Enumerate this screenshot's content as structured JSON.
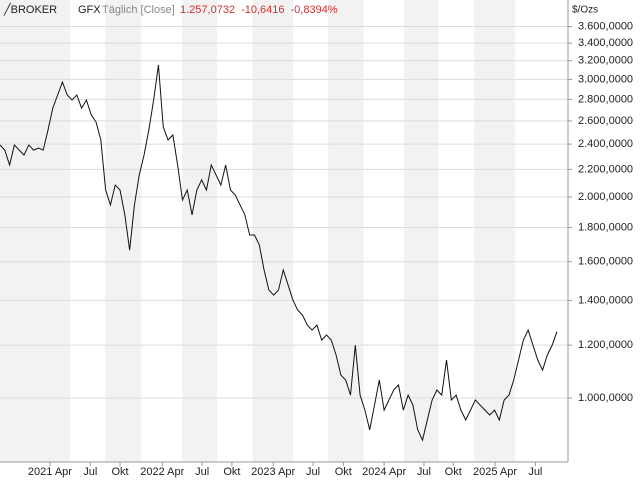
{
  "chart_data": {
    "type": "line",
    "brand": "╱BROKER",
    "title": "GFX",
    "subtitle": "Täglich [Close]",
    "annotations": [
      "1.257,0732",
      "-10,6416",
      "-0,8394%"
    ],
    "annotation_color": "#d03030",
    "ylabel": "$/Ozs",
    "log_scale": true,
    "grid": true,
    "series": [
      {
        "name": "GFX",
        "color": "#111111",
        "values": [
          2393,
          2351,
          2233,
          2393,
          2351,
          2312,
          2393,
          2351,
          2368,
          2351,
          2520,
          2718,
          2843,
          2973,
          2843,
          2794,
          2843,
          2718,
          2794,
          2654,
          2590,
          2435,
          2049,
          1946,
          2084,
          2049,
          1880,
          1665,
          1946,
          2158,
          2312,
          2520,
          2794,
          3153,
          2546,
          2435,
          2477,
          2233,
          1979,
          2049,
          1880,
          2049,
          2121,
          2049,
          2233,
          2158,
          2084,
          2233,
          2049,
          2014,
          1946,
          1880,
          1754,
          1754,
          1696,
          1555,
          1451,
          1426,
          1451,
          1555,
          1477,
          1402,
          1354,
          1331,
          1286,
          1264,
          1286,
          1221,
          1243,
          1221,
          1160,
          1082,
          1064,
          1010,
          1200,
          1010,
          959,
          896,
          976,
          1064,
          959,
          993,
          1028,
          1046,
          959,
          1010,
          976,
          896,
          865,
          927,
          993,
          1028,
          1010,
          1140,
          993,
          1010,
          959,
          927,
          959,
          993,
          976,
          959,
          943,
          959,
          927,
          993,
          1010,
          1064,
          1140,
          1221,
          1264,
          1200,
          1140,
          1101,
          1160,
          1200,
          1257
        ]
      }
    ],
    "xlim": [
      0,
      118.3
    ],
    "xticks": [
      {
        "value": 10.4,
        "label": "2021 Apr"
      },
      {
        "value": 18.8,
        "label": "Jul"
      },
      {
        "value": 25,
        "label": "Okt"
      },
      {
        "value": 33.8,
        "label": "2022 Apr"
      },
      {
        "value": 42.1,
        "label": "Jul"
      },
      {
        "value": 48.3,
        "label": "Okt"
      },
      {
        "value": 56.9,
        "label": "2023 Apr"
      },
      {
        "value": 65.2,
        "label": "Jul"
      },
      {
        "value": 71.5,
        "label": "Okt"
      },
      {
        "value": 80,
        "label": "2024 Apr"
      },
      {
        "value": 88.3,
        "label": "Jul"
      },
      {
        "value": 94.4,
        "label": "Okt"
      },
      {
        "value": 103.1,
        "label": "2025 Apr"
      },
      {
        "value": 111.5,
        "label": "Jul"
      }
    ],
    "ylim": [
      802,
      3945
    ],
    "yticks": [
      {
        "value": 1000,
        "label": "1.000,0000"
      },
      {
        "value": 1200,
        "label": "1.200,0000"
      },
      {
        "value": 1400,
        "label": "1.400,0000"
      },
      {
        "value": 1600,
        "label": "1.600,0000"
      },
      {
        "value": 1800,
        "label": "1.800,0000"
      },
      {
        "value": 2000,
        "label": "2.000,0000"
      },
      {
        "value": 2200,
        "label": "2.200,0000"
      },
      {
        "value": 2400,
        "label": "2.400,0000"
      },
      {
        "value": 2600,
        "label": "2.600,0000"
      },
      {
        "value": 2800,
        "label": "2.800,0000"
      },
      {
        "value": 3000,
        "label": "3.000,0000"
      },
      {
        "value": 3200,
        "label": "3.200,0000"
      },
      {
        "value": 3400,
        "label": "3.400,0000"
      },
      {
        "value": 3600,
        "label": "3.600,0000"
      }
    ]
  }
}
